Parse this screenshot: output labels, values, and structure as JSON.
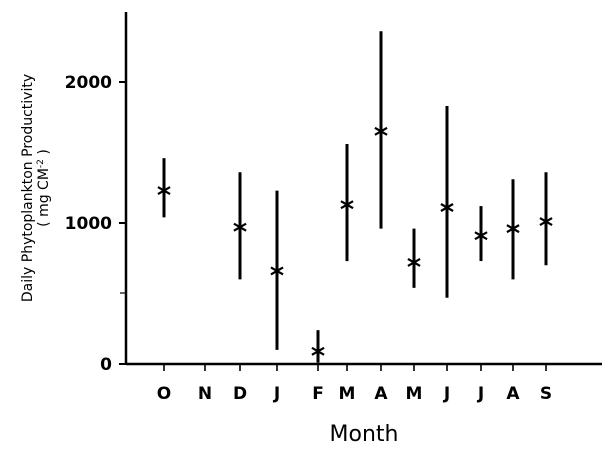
{
  "chart_data": {
    "type": "scatter",
    "title": "",
    "xlabel": "Month",
    "ylabel": {
      "line1": "Daily Phytoplankton Productivity",
      "line2_prefix": "( mg CM",
      "line2_sup": "-2",
      "line2_suffix": " )"
    },
    "ylim": [
      0,
      2500
    ],
    "yticks": [
      0,
      1000,
      2000
    ],
    "ytick_labels": [
      "0",
      "1000",
      "2000"
    ],
    "grid": false,
    "legend": "none",
    "categories": [
      "O",
      "N",
      "D",
      "J",
      "F",
      "M",
      "A",
      "M",
      "J",
      "J",
      "A",
      "S"
    ],
    "series": [
      {
        "marker": "asterisk",
        "values": [
          1230,
          null,
          970,
          660,
          90,
          1130,
          1650,
          720,
          1110,
          910,
          960,
          1010
        ],
        "range_low": [
          1040,
          null,
          600,
          100,
          10,
          730,
          960,
          540,
          470,
          730,
          600,
          700
        ],
        "range_high": [
          1460,
          null,
          1360,
          1230,
          240,
          1560,
          2360,
          960,
          1830,
          1120,
          1310,
          1360
        ]
      }
    ]
  }
}
